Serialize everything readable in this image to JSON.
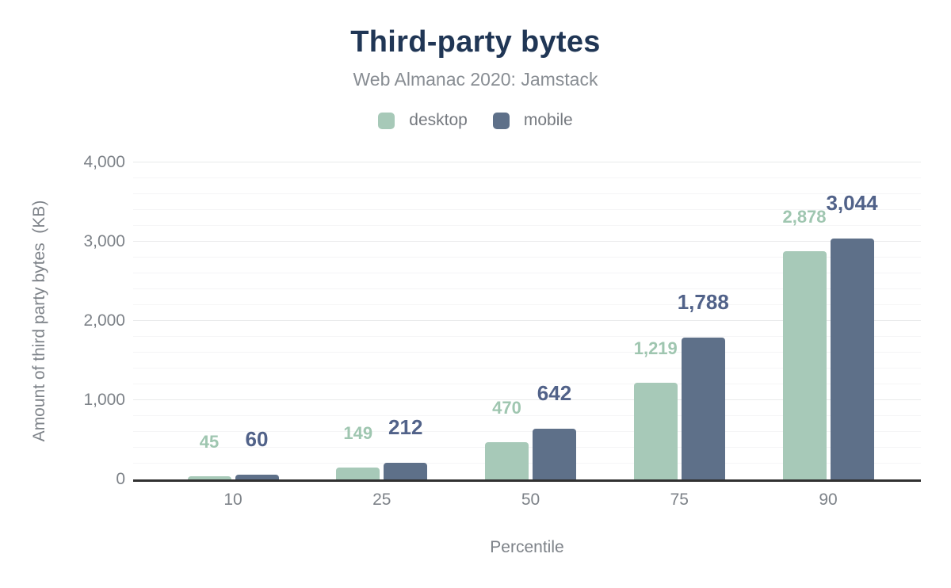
{
  "title": "Third-party bytes",
  "subtitle": "Web Almanac 2020: Jamstack",
  "colors": {
    "title": "#203655",
    "subtitle_text": "#888d93",
    "axis_text": "#7d8288",
    "axis_line": "#313131",
    "grid_major": "#e9eaeb",
    "grid_minor": "#f5f5f6",
    "desktop": "#a7c9b8",
    "mobile": "#5e7089",
    "desktop_label": "#9fc6b0",
    "mobile_label": "#516289"
  },
  "chart_data": {
    "type": "bar",
    "categories": [
      "10",
      "25",
      "50",
      "75",
      "90"
    ],
    "series": [
      {
        "name": "desktop",
        "color": "#a7c9b8",
        "label_color": "#9fc6b0",
        "values": [
          45,
          149,
          470,
          1219,
          2878
        ],
        "labels": [
          "45",
          "149",
          "470",
          "1,219",
          "2,878"
        ]
      },
      {
        "name": "mobile",
        "color": "#5e7089",
        "label_color": "#516289",
        "values": [
          60,
          212,
          642,
          1788,
          3044
        ],
        "labels": [
          "60",
          "212",
          "642",
          "1,788",
          "3,044"
        ]
      }
    ],
    "title": "Third-party bytes",
    "subtitle": "Web Almanac 2020: Jamstack",
    "xlabel": "Percentile",
    "ylabel": "Amount of third party bytes  (KB)",
    "ylim": [
      0,
      4000
    ],
    "ytick_step": 1000,
    "yminor_step": 200,
    "yticks": [
      "0",
      "1,000",
      "2,000",
      "3,000",
      "4,000"
    ],
    "grid": true,
    "legend_position": "top"
  }
}
